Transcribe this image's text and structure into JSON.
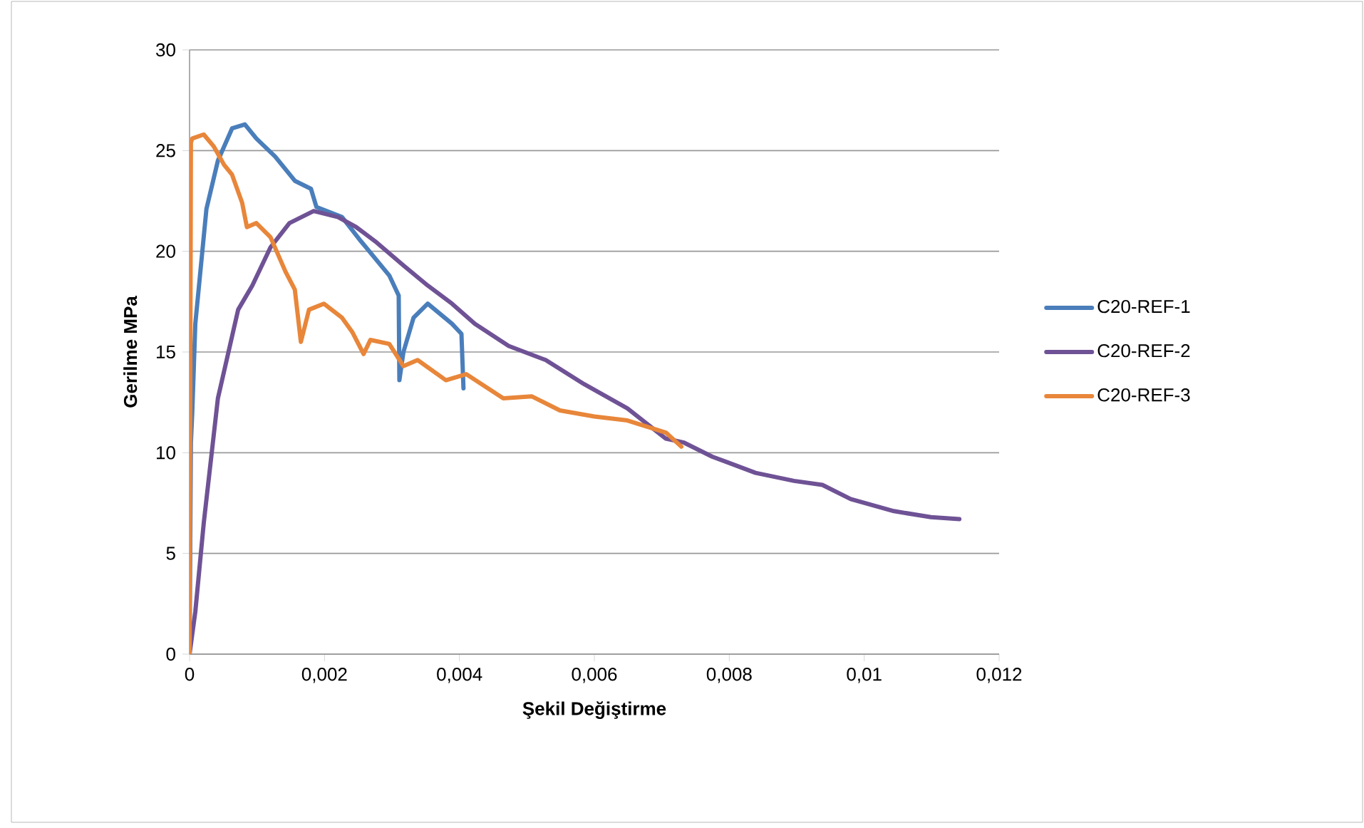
{
  "chart_data": {
    "type": "line",
    "xlabel": "Şekil Değiştirme",
    "ylabel": "Gerilme  MPa",
    "xlim": [
      0,
      0.012
    ],
    "ylim": [
      0,
      30
    ],
    "xticks": [
      0,
      {
        "value": 0.002,
        "label": "0,002"
      },
      {
        "value": 0.004,
        "label": "0,004"
      },
      {
        "value": 0.006,
        "label": "0,006"
      },
      {
        "value": 0.008,
        "label": "0,008"
      },
      {
        "value": 0.01,
        "label": "0,01"
      },
      {
        "value": 0.012,
        "label": "0,012"
      }
    ],
    "yticks": [
      0,
      5,
      10,
      15,
      20,
      25,
      30
    ],
    "grid": "y",
    "legend": "right",
    "marker": "none",
    "line_style": "solid",
    "series": [
      {
        "name": "C20-REF-1",
        "color": "#4a7ebb",
        "x": [
          0,
          2e-05,
          4e-05,
          8.5e-05,
          0.00025,
          0.00042,
          0.00063,
          0.00082,
          0.00099,
          0.00127,
          0.00156,
          0.0018,
          0.00188,
          0.00226,
          0.00254,
          0.00296,
          0.0031,
          0.00311,
          0.00317,
          0.00332,
          0.00353,
          0.00389,
          0.00403,
          0.00406
        ],
        "values": [
          0,
          10.5,
          12,
          16.4,
          22.1,
          24.5,
          26.1,
          26.3,
          25.6,
          24.7,
          23.5,
          23.1,
          22.2,
          21.7,
          20.5,
          18.8,
          17.8,
          13.6,
          15.0,
          16.7,
          17.4,
          16.4,
          15.9,
          13.2
        ]
      },
      {
        "name": "C20-REF-2",
        "color": "#6f5295",
        "x": [
          0,
          8.5e-05,
          0.00021,
          0.00042,
          0.00072,
          0.00093,
          0.0012,
          0.00148,
          0.00184,
          0.0022,
          0.00247,
          0.00275,
          0.00317,
          0.00353,
          0.00389,
          0.00423,
          0.00473,
          0.00528,
          0.00585,
          0.00649,
          0.00706,
          0.00733,
          0.00775,
          0.00839,
          0.00896,
          0.00938,
          0.0098,
          0.01044,
          0.01099,
          0.01141
        ],
        "values": [
          0,
          2.1,
          6.5,
          12.7,
          17.1,
          18.3,
          20.2,
          21.4,
          22.0,
          21.7,
          21.2,
          20.5,
          19.3,
          18.3,
          17.4,
          16.4,
          15.3,
          14.6,
          13.4,
          12.2,
          10.7,
          10.5,
          9.8,
          9.0,
          8.6,
          8.4,
          7.7,
          7.1,
          6.8,
          6.7
        ]
      },
      {
        "name": "C20-REF-3",
        "color": "#e8863a",
        "x": [
          0,
          2e-05,
          4e-05,
          0.00021,
          0.00036,
          0.00051,
          0.00063,
          0.00078,
          0.00085,
          0.00099,
          0.0012,
          0.00142,
          0.00156,
          0.00165,
          0.00177,
          0.00199,
          0.00226,
          0.00241,
          0.00258,
          0.00268,
          0.00296,
          0.00317,
          0.00338,
          0.0038,
          0.0041,
          0.00465,
          0.00507,
          0.00549,
          0.006,
          0.00649,
          0.00706,
          0.00729
        ],
        "values": [
          0,
          25.4,
          25.6,
          25.8,
          25.2,
          24.3,
          23.8,
          22.4,
          21.2,
          21.4,
          20.7,
          19.0,
          18.1,
          15.5,
          17.1,
          17.4,
          16.7,
          16.0,
          14.9,
          15.6,
          15.4,
          14.3,
          14.6,
          13.6,
          13.9,
          12.7,
          12.8,
          12.1,
          11.8,
          11.6,
          11.0,
          10.3
        ]
      }
    ]
  }
}
